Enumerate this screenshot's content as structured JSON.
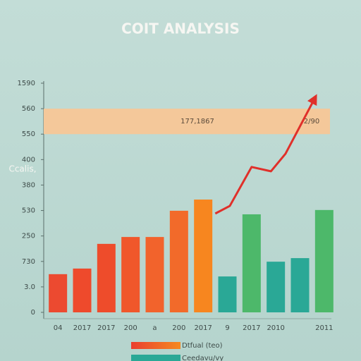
{
  "chart_data": {
    "type": "bar",
    "title": "COIT ANALYSIS",
    "ylabel": "Ccalis,",
    "categories": [
      "04",
      "2017",
      "2017",
      "200",
      "a",
      "200",
      "2017",
      "9",
      "2017",
      "2010",
      null,
      "2011"
    ],
    "ylim": [
      0,
      9
    ],
    "yticks": [
      0,
      {
        "value": 1,
        "label": "3.0"
      },
      {
        "value": 2,
        "label": "730"
      },
      {
        "value": 3,
        "label": "250"
      },
      {
        "value": 4,
        "label": "530"
      },
      {
        "value": 5,
        "label": "380"
      },
      {
        "value": 6,
        "label": "400"
      },
      {
        "value": 7,
        "label": "550"
      },
      {
        "value": 8,
        "label": "560"
      },
      {
        "value": 9,
        "label": "1590"
      }
    ],
    "band": {
      "from": 7,
      "to": 8,
      "color": "#f4c89a",
      "labels": [
        "177,1867",
        "2/90"
      ]
    },
    "series": [
      {
        "name": "Dtfual (teo)",
        "type": "bar",
        "color": "#ef5a2a",
        "colors": [
          "#ec4a30",
          "#ee4a2c",
          "#ee4c2b",
          "#f0572b",
          "#f2632c",
          "#f26a2a",
          "#f7861f",
          null,
          null,
          null,
          null,
          null
        ],
        "values": [
          1.5,
          1.72,
          2.69,
          2.96,
          2.96,
          3.99,
          4.43,
          null,
          null,
          null,
          null,
          null
        ]
      },
      {
        "name": "Ceedavu/vy",
        "type": "bar",
        "color": "#2aa896",
        "colors": [
          null,
          null,
          null,
          null,
          null,
          null,
          null,
          "#2aa896",
          "#4db86a",
          "#2aa896",
          "#2aa896",
          "#4db86a"
        ],
        "values": [
          null,
          null,
          null,
          null,
          null,
          null,
          null,
          1.41,
          3.85,
          1.99,
          2.13,
          4.02
        ]
      },
      {
        "type": "line",
        "color": "#e0302a",
        "x": [
          7.0,
          7.6,
          8.5,
          9.3,
          9.9,
          11.1
        ],
        "values": [
          3.88,
          4.18,
          5.71,
          5.54,
          6.23,
          8.39
        ]
      }
    ]
  }
}
